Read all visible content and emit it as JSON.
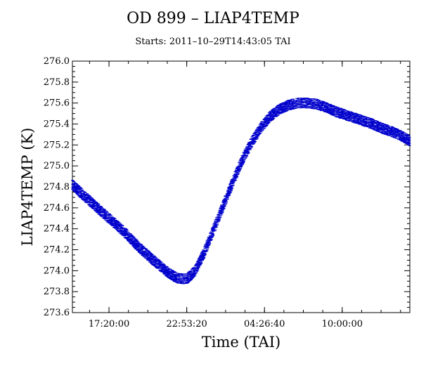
{
  "title": "OD 899 – LIAP4TEMP",
  "subtitle": "Starts: 2011–10–29T14:43:05 TAI",
  "chart_data": {
    "type": "scatter",
    "xlabel": "Time (TAI)",
    "ylabel": "LIAP4TEMP (K)",
    "ylim": [
      273.6,
      276.0
    ],
    "ytick_step": 0.2,
    "yticks": [
      "273.6",
      "273.8",
      "274.0",
      "274.2",
      "274.4",
      "274.6",
      "274.8",
      "275.0",
      "275.2",
      "275.4",
      "275.6",
      "275.8",
      "276.0"
    ],
    "xlim_hours_note": "x axis spans approx 2011-10-29 14:43 to 2011-10-30 14:50 TAI",
    "xticks": [
      {
        "label": "17:20:00",
        "time": "2011-10-29T17:20:00"
      },
      {
        "label": "22:53:20",
        "time": "2011-10-29T22:53:20"
      },
      {
        "label": "04:26:40",
        "time": "2011-10-30T04:26:40"
      },
      {
        "label": "10:00:00",
        "time": "2011-10-30T10:00:00"
      }
    ],
    "xlim": [
      "2011-10-29T14:43:05",
      "2011-10-30T14:50:00"
    ],
    "marker_color": "#0000cc",
    "series": [
      {
        "x": [
          "2011-10-29T14:43:05",
          "2011-10-29T15:30:00",
          "2011-10-29T16:30:00",
          "2011-10-29T17:30:00",
          "2011-10-29T18:30:00",
          "2011-10-29T19:30:00",
          "2011-10-29T20:30:00",
          "2011-10-29T21:30:00",
          "2011-10-29T22:10:00",
          "2011-10-29T22:53:20",
          "2011-10-29T23:30:00",
          "2011-10-30T00:10:00",
          "2011-10-30T00:50:00",
          "2011-10-30T01:30:00",
          "2011-10-30T02:10:00",
          "2011-10-30T02:50:00",
          "2011-10-30T03:30:00",
          "2011-10-30T04:10:00",
          "2011-10-30T04:50:00",
          "2011-10-30T05:30:00",
          "2011-10-30T06:10:00",
          "2011-10-30T06:50:00",
          "2011-10-30T07:30:00",
          "2011-10-30T08:10:00",
          "2011-10-30T08:50:00",
          "2011-10-30T09:30:00",
          "2011-10-30T10:10:00",
          "2011-10-30T10:50:00",
          "2011-10-30T11:30:00",
          "2011-10-30T12:10:00",
          "2011-10-30T12:50:00",
          "2011-10-30T13:30:00",
          "2011-10-30T14:10:00",
          "2011-10-30T14:50:00"
        ],
        "y": [
          274.82,
          274.72,
          274.6,
          274.48,
          274.36,
          274.22,
          274.1,
          273.99,
          273.93,
          273.92,
          274.0,
          274.18,
          274.4,
          274.62,
          274.84,
          275.05,
          275.22,
          275.36,
          275.47,
          275.54,
          275.58,
          275.6,
          275.6,
          275.59,
          275.56,
          275.52,
          275.49,
          275.46,
          275.43,
          275.4,
          275.36,
          275.33,
          275.29,
          275.24
        ]
      }
    ],
    "grid": false,
    "legend": "none"
  }
}
